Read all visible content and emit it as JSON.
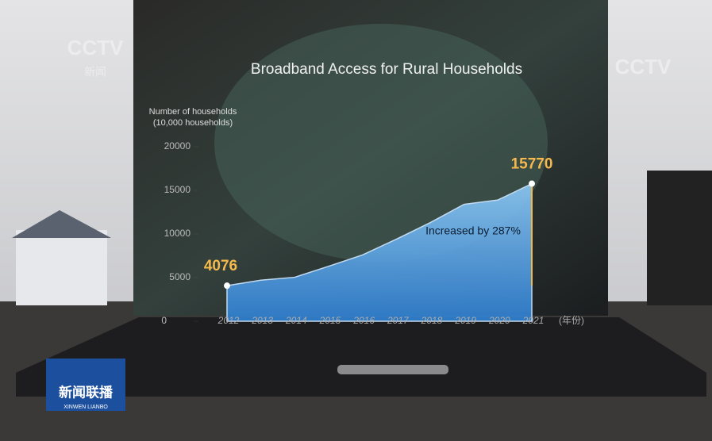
{
  "chart_data": {
    "type": "area",
    "title": "Broadband Access for Rural Households",
    "y_label": "Number of households (10,000 households)",
    "x_unit": "(年份)",
    "categories": [
      "2012",
      "2013",
      "2014",
      "2015",
      "2016",
      "2017",
      "2018",
      "2019",
      "2020",
      "2021"
    ],
    "values": [
      4076,
      4700,
      5040,
      6300,
      7600,
      9400,
      11300,
      13400,
      13900,
      15770
    ],
    "color": "#5aa9e6",
    "ylim": [
      0,
      20000
    ],
    "yticks": [
      0,
      5000,
      10000,
      15000,
      20000
    ],
    "annotation": "Increased by 287%"
  },
  "overlay": {
    "channel_logo": "CCTV",
    "channel_sub": "新闻",
    "corner_logo": "CCTV",
    "program": "新闻联播",
    "program_en": "XINWEN LIANBO"
  }
}
